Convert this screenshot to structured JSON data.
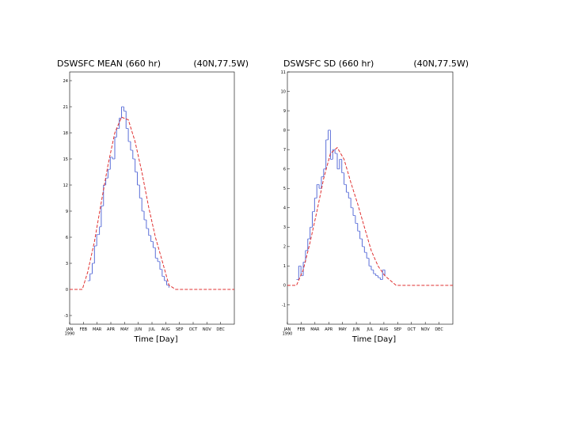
{
  "chart_data": [
    {
      "type": "line",
      "title": "DSWSFC MEAN (660 hr)",
      "location": "(40N,77.5W)",
      "xlabel": "Time [Day]",
      "ylabel": "",
      "x_ticks": [
        "JAN\n1990",
        "FEB",
        "MAR",
        "APR",
        "MAY",
        "JUN",
        "JUL",
        "AUG",
        "SEP",
        "OCT",
        "NOV",
        "DEC"
      ],
      "y_ticks": [
        "-3",
        "0",
        "3",
        "6",
        "9",
        "12",
        "15",
        "18",
        "21",
        "24"
      ],
      "xlim": [
        0,
        365
      ],
      "ylim": [
        -4,
        25
      ],
      "grid": false,
      "series": [
        {
          "color": "#e03030",
          "style": "dashed",
          "x": [
            0,
            28,
            40,
            55,
            70,
            85,
            100,
            115,
            130,
            145,
            160,
            175,
            190,
            205,
            220,
            235,
            250,
            265,
            365
          ],
          "y": [
            0,
            0,
            2.0,
            5.5,
            10.0,
            14.3,
            18.0,
            19.8,
            19.5,
            17.0,
            13.5,
            9.5,
            6.0,
            3.3,
            0.5,
            0,
            0,
            0,
            0
          ]
        },
        {
          "color": "#5a6ed8",
          "style": "solid",
          "x": [
            40,
            45,
            50,
            55,
            60,
            66,
            70,
            75,
            80,
            85,
            90,
            95,
            100,
            104,
            110,
            115,
            120,
            125,
            130,
            135,
            140,
            145,
            150,
            155,
            160,
            165,
            170,
            175,
            180,
            185,
            190,
            195,
            200,
            205,
            210,
            215,
            220
          ],
          "y": [
            1.0,
            1.8,
            3.0,
            5.0,
            6.3,
            7.2,
            9.6,
            12.0,
            12.8,
            13.8,
            15.2,
            15.0,
            17.5,
            18.5,
            19.7,
            21.0,
            20.5,
            18.5,
            17.0,
            16.0,
            15.0,
            13.5,
            12.0,
            10.5,
            9.0,
            8.0,
            7.0,
            6.2,
            5.5,
            4.8,
            3.6,
            3.2,
            2.3,
            1.5,
            1.0,
            0.5,
            0.2
          ]
        }
      ]
    },
    {
      "type": "line",
      "title": "DSWSFC SD (660 hr)",
      "location": "(40N,77.5W)",
      "xlabel": "Time [Day]",
      "ylabel": "",
      "x_ticks": [
        "JAN\n1990",
        "FEB",
        "MAR",
        "APR",
        "MAY",
        "JUN",
        "JUL",
        "AUG",
        "SEP",
        "OCT",
        "NOV",
        "DEC"
      ],
      "y_ticks": [
        "-1",
        "0",
        "1",
        "2",
        "3",
        "4",
        "5",
        "6",
        "7",
        "8",
        "9",
        "10",
        "11"
      ],
      "xlim": [
        0,
        365
      ],
      "ylim": [
        -2,
        11
      ],
      "grid": false,
      "series": [
        {
          "color": "#e03030",
          "style": "dashed",
          "x": [
            0,
            20,
            35,
            50,
            65,
            80,
            95,
            110,
            125,
            140,
            155,
            170,
            185,
            200,
            215,
            240,
            365
          ],
          "y": [
            0,
            0,
            0.8,
            2.2,
            3.8,
            5.5,
            6.8,
            7.1,
            6.5,
            5.3,
            4.2,
            3.0,
            1.8,
            1.0,
            0.5,
            0,
            0
          ]
        },
        {
          "color": "#5a6ed8",
          "style": "solid",
          "x": [
            20,
            25,
            30,
            35,
            40,
            45,
            50,
            55,
            60,
            65,
            70,
            75,
            80,
            85,
            90,
            95,
            100,
            105,
            110,
            115,
            120,
            125,
            130,
            135,
            140,
            145,
            150,
            155,
            160,
            165,
            170,
            175,
            180,
            185,
            190,
            195,
            200,
            205,
            210,
            215
          ],
          "y": [
            0.3,
            1.0,
            0.5,
            1.2,
            1.8,
            2.4,
            3.0,
            3.8,
            4.5,
            5.2,
            5.0,
            5.6,
            6.0,
            7.5,
            8.0,
            6.5,
            7.0,
            6.8,
            6.0,
            6.5,
            5.8,
            5.2,
            4.8,
            4.5,
            4.0,
            3.6,
            3.2,
            2.8,
            2.4,
            2.0,
            1.7,
            1.4,
            1.0,
            0.8,
            0.6,
            0.5,
            0.4,
            0.3,
            0.8,
            0.5
          ]
        }
      ]
    }
  ]
}
